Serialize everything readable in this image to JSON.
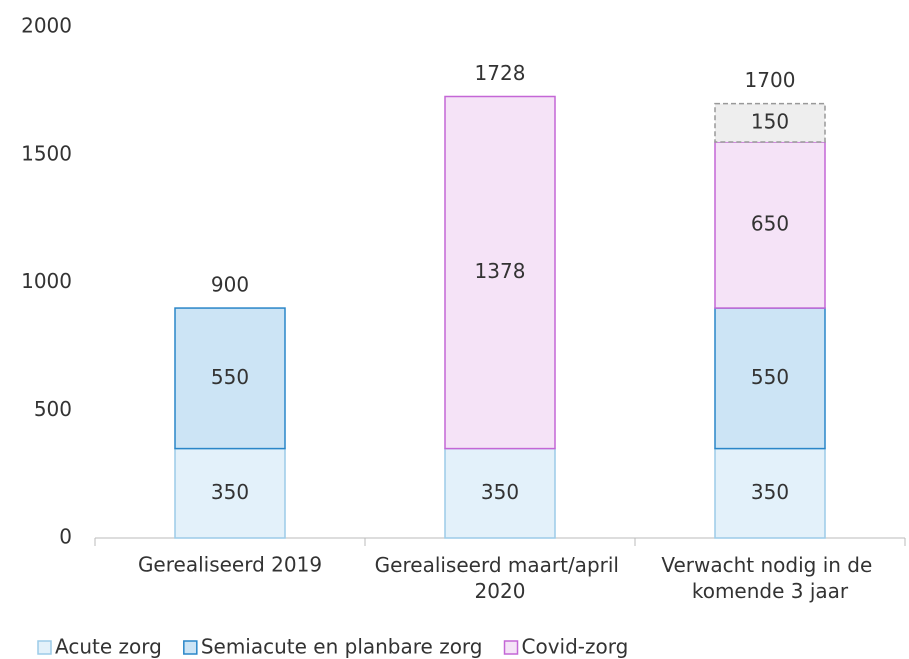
{
  "chart_data": {
    "type": "stacked-bar",
    "categories": [
      "Gerealiseerd 2019",
      "Gerealiseerd maart/april 2020",
      "Verwacht nodig in de komende 3 jaar"
    ],
    "series": [
      {
        "name": "Acute zorg",
        "color": "#e3f1fa",
        "stroke": "#9ccbe8",
        "label_color": "#6a9bbb",
        "values": [
          350,
          350,
          350
        ]
      },
      {
        "name": "Semiacute en planbare zorg",
        "color": "#cce4f5",
        "stroke": "#2a86c8",
        "label_color": "#1f6fad",
        "values": [
          550,
          null,
          550
        ]
      },
      {
        "name": "Covid-zorg",
        "color": "#f5e3f7",
        "stroke": "#c467d6",
        "label_color": "#6b1a7c",
        "values": [
          null,
          1378,
          650
        ]
      },
      {
        "color": "#eeeeee",
        "stroke": "#999999",
        "label_color": "#666666",
        "dashed": true,
        "values": [
          null,
          null,
          150
        ]
      }
    ],
    "totals": [
      900,
      1728,
      1700
    ],
    "ylim": [
      0,
      2000
    ],
    "yticks": [
      0,
      500,
      1000,
      1500,
      2000
    ],
    "grid": false,
    "legend": "bottom"
  }
}
